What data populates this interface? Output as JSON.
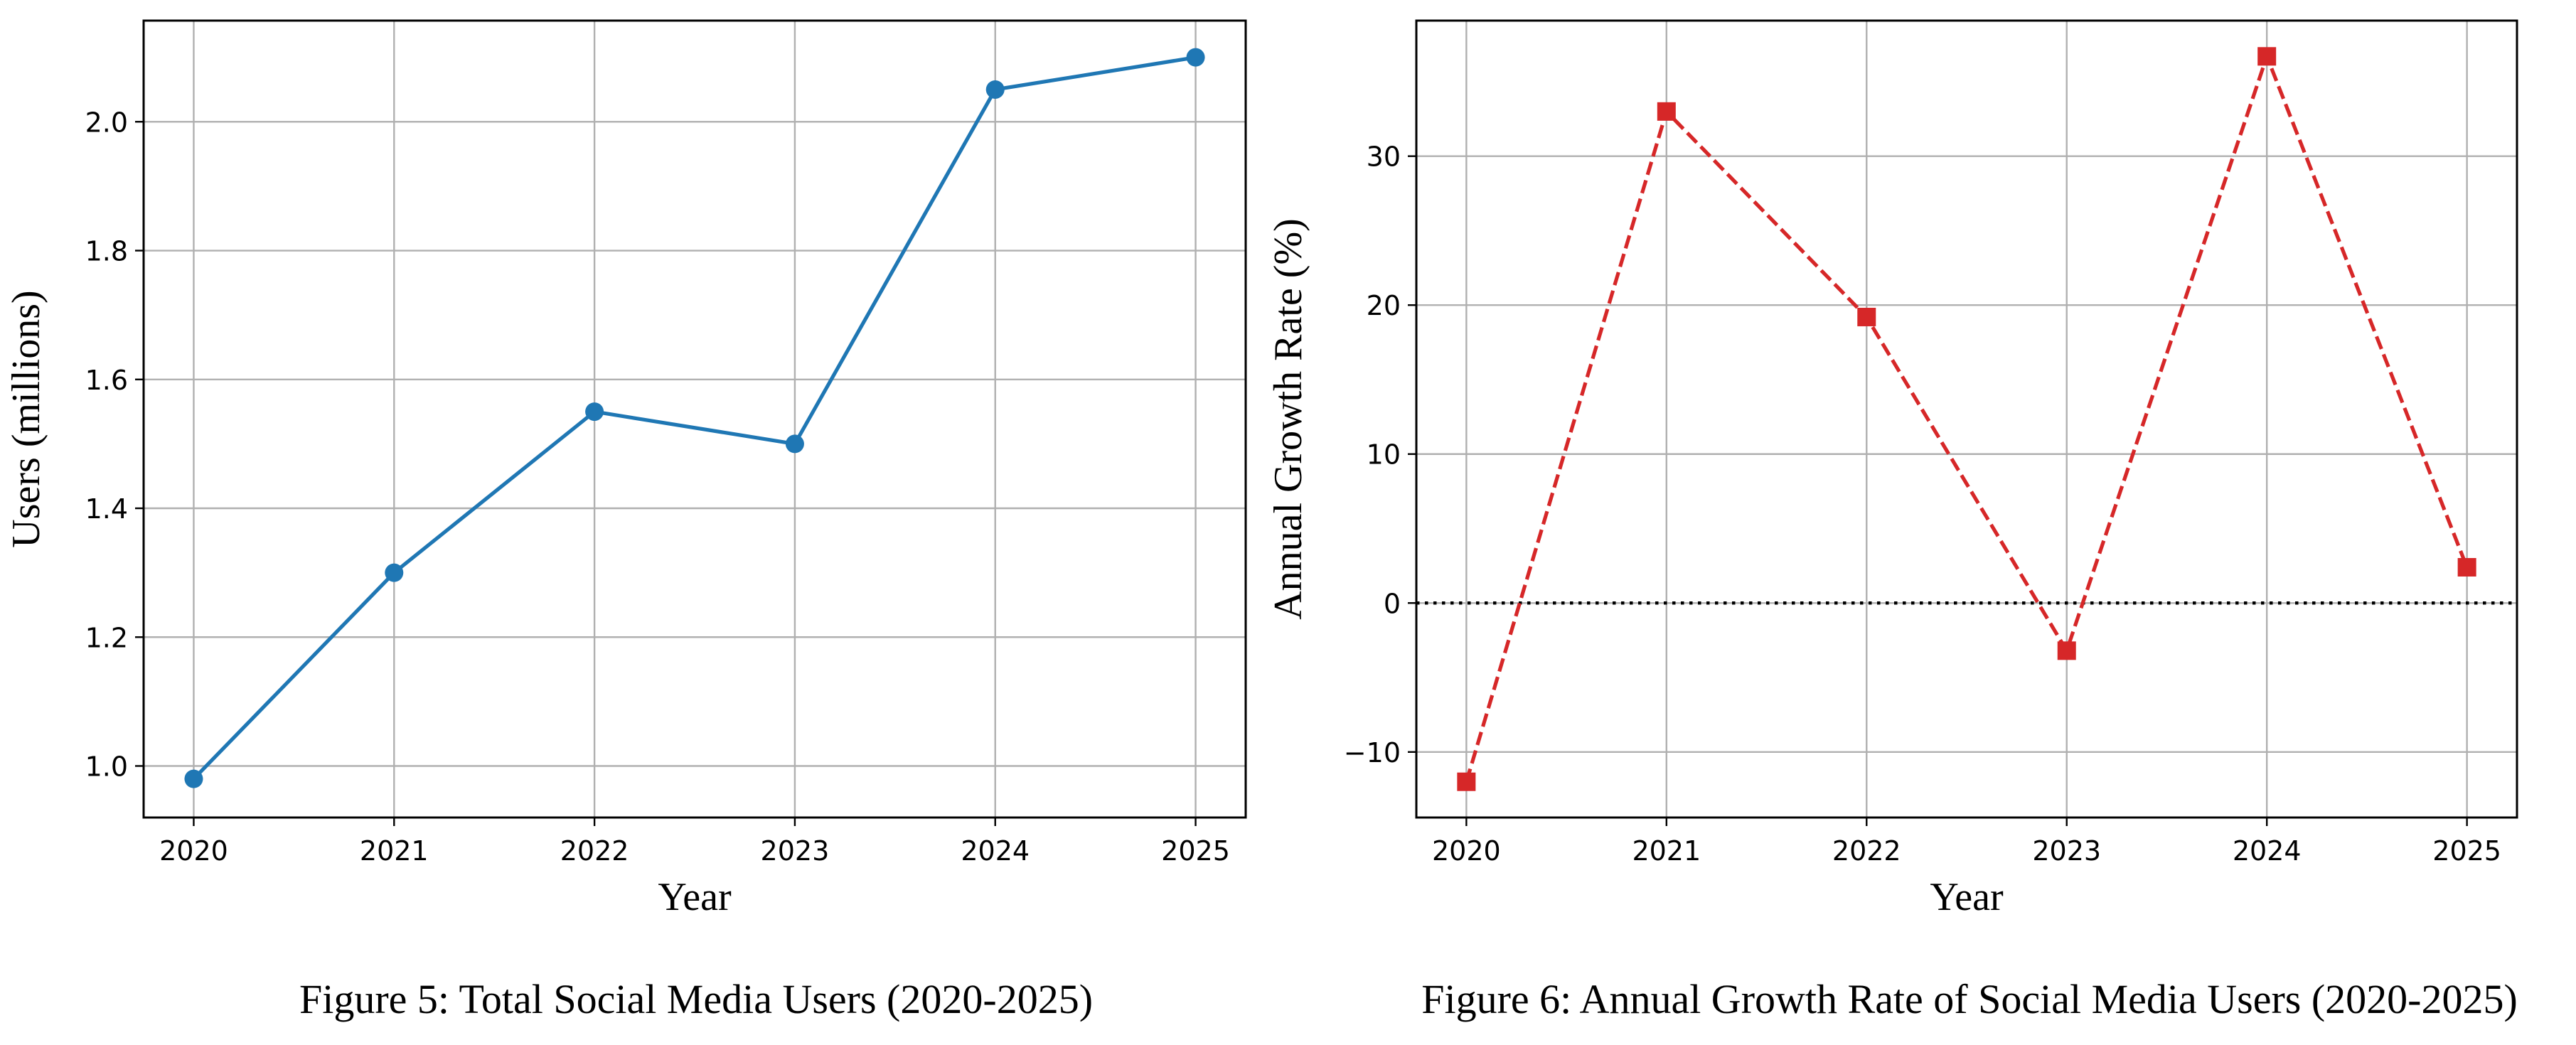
{
  "figures": [
    {
      "caption": "Figure 5: Total Social Media Users (2020-2025)",
      "chart_data": {
        "type": "line",
        "title": "",
        "xlabel": "Year",
        "ylabel": "Users (millions)",
        "x": [
          2020,
          2021,
          2022,
          2023,
          2024,
          2025
        ],
        "series": [
          {
            "values": [
              0.98,
              1.3,
              1.55,
              1.5,
              2.05,
              2.1
            ],
            "color": "#1f77b4",
            "marker": "circle",
            "linestyle": "solid"
          }
        ],
        "xticks": [
          "2020",
          "2021",
          "2022",
          "2023",
          "2024",
          "2025"
        ],
        "yticks": [
          "1.0",
          "1.2",
          "1.4",
          "1.6",
          "1.8",
          "2.0"
        ],
        "xlim": [
          2019.75,
          2025.25
        ],
        "ylim": [
          0.92,
          2.157
        ],
        "grid": true,
        "reference_line": null
      }
    },
    {
      "caption": "Figure 6: Annual Growth Rate of Social Media Users (2020-2025)",
      "chart_data": {
        "type": "line",
        "title": "",
        "xlabel": "Year",
        "ylabel": "Annual Growth Rate (%)",
        "x": [
          2020,
          2021,
          2022,
          2023,
          2024,
          2025
        ],
        "series": [
          {
            "values": [
              -12.0,
              33.0,
              19.2,
              -3.2,
              36.7,
              2.4
            ],
            "color": "#d62728",
            "marker": "square",
            "linestyle": "dashed"
          }
        ],
        "xticks": [
          "2020",
          "2021",
          "2022",
          "2023",
          "2024",
          "2025"
        ],
        "yticks": [
          "−10",
          "0",
          "10",
          "20",
          "30"
        ],
        "xlim": [
          2019.75,
          2025.25
        ],
        "ylim": [
          -14.4,
          39.1
        ],
        "grid": true,
        "reference_line": {
          "y": 0,
          "color": "#000000",
          "linestyle": "dotted"
        }
      }
    }
  ]
}
